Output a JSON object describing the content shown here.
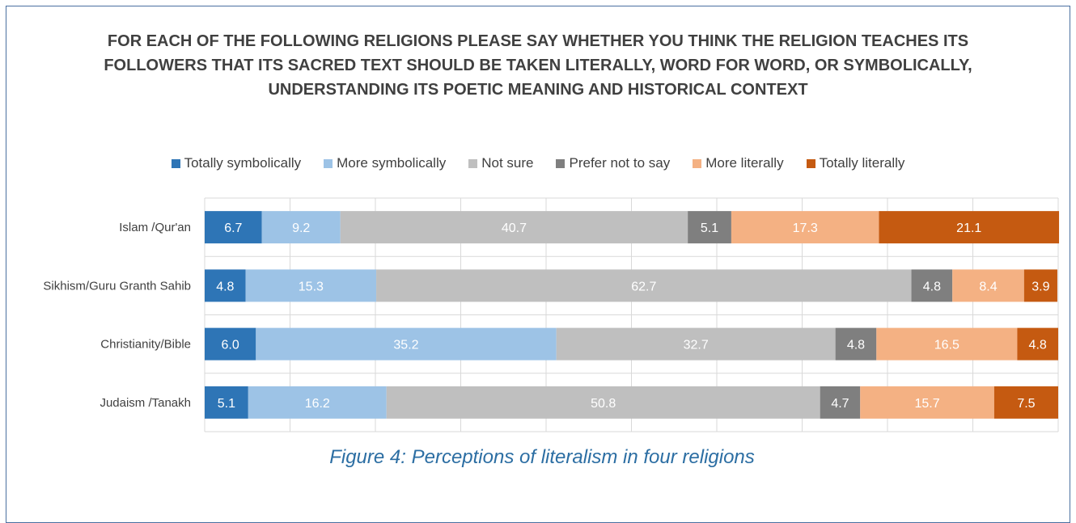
{
  "chart_data": {
    "type": "bar",
    "stacked": true,
    "orientation": "horizontal",
    "title": "FOR EACH OF THE FOLLOWING RELIGIONS PLEASE SAY WHETHER YOU THINK THE RELIGION TEACHES ITS FOLLOWERS THAT ITS SACRED TEXT SHOULD BE TAKEN LITERALLY, WORD FOR WORD, OR SYMBOLICALLY, UNDERSTANDING ITS POETIC MEANING AND HISTORICAL CONTEXT",
    "legend_position": "top",
    "grid": true,
    "categories": [
      "Islam /Qur'an",
      "Sikhism/Guru Granth Sahib",
      "Christianity/Bible",
      "Judaism /Tanakh"
    ],
    "xlim": [
      0,
      100
    ],
    "series": [
      {
        "name": "Totally symbolically",
        "color": "#2e75b6",
        "values": [
          6.7,
          4.8,
          6.0,
          5.1
        ]
      },
      {
        "name": "More symbolically",
        "color": "#9dc3e6",
        "values": [
          9.2,
          15.3,
          35.2,
          16.2
        ]
      },
      {
        "name": "Not sure",
        "color": "#bfbfbf",
        "values": [
          40.7,
          62.7,
          32.7,
          50.8
        ]
      },
      {
        "name": "Prefer not to say",
        "color": "#7f7f7f",
        "values": [
          5.1,
          4.8,
          4.8,
          4.7
        ]
      },
      {
        "name": "More literally",
        "color": "#f4b183",
        "values": [
          17.3,
          8.4,
          16.5,
          15.7
        ]
      },
      {
        "name": "Totally literally",
        "color": "#c55a11",
        "values": [
          21.1,
          3.9,
          4.8,
          7.5
        ]
      }
    ]
  },
  "caption": "Figure 4: Perceptions of literalism in four religions"
}
